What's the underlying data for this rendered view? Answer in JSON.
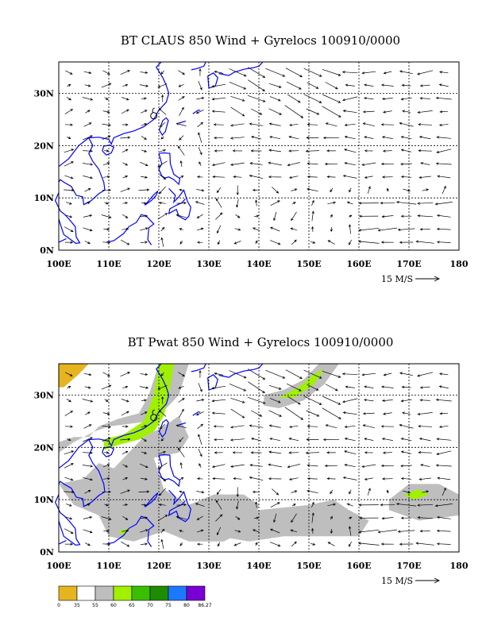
{
  "maps": [
    {
      "title": "BT CLAUS 850 Wind + Gyrelocs 100910/0000",
      "lat_labels": [
        "30N",
        "20N",
        "10N",
        "0N"
      ],
      "lon_labels": [
        "100E",
        "110E",
        "120E",
        "130E",
        "140E",
        "150E",
        "160E",
        "170E",
        "180"
      ],
      "scale_label": "15 M/S",
      "shading": false
    },
    {
      "title": "BT Pwat 850 Wind + Gyrelocs 100910/0000",
      "lat_labels": [
        "30N",
        "20N",
        "10N",
        "0N"
      ],
      "lon_labels": [
        "100E",
        "110E",
        "120E",
        "130E",
        "140E",
        "150E",
        "160E",
        "170E",
        "180"
      ],
      "scale_label": "15 M/S",
      "shading": true
    }
  ],
  "colorbar": {
    "labels": [
      "0",
      "35",
      "55",
      "60",
      "65",
      "70",
      "75",
      "80",
      "86.27"
    ],
    "colors": [
      "#e6b41e",
      "#ffffff",
      "#bebebe",
      "#a0f000",
      "#3cbe00",
      "#1e8c00",
      "#1e78ff",
      "#7800d2"
    ]
  },
  "colors": {
    "coast": "#0000ff",
    "grey_shade": "#bebebe",
    "green_shade": "#a0f000",
    "gold_shade": "#e6b41e"
  }
}
